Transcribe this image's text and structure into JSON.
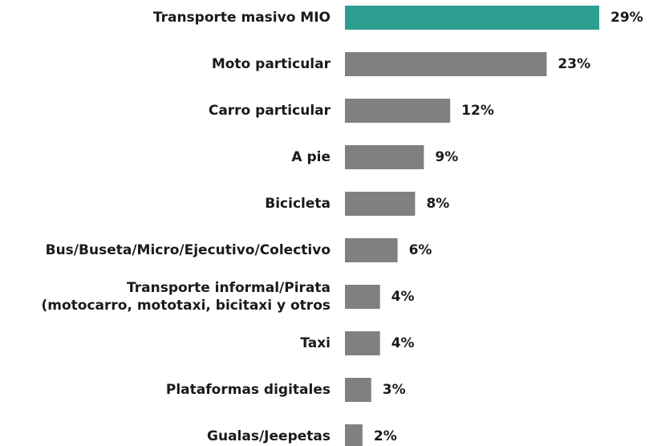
{
  "chart_data": {
    "type": "bar",
    "orientation": "horizontal",
    "categories": [
      "Transporte masivo MIO",
      "Moto particular",
      "Carro particular",
      "A pie",
      "Bicicleta",
      "Bus/Buseta/Micro/Ejecutivo/Colectivo",
      "Transporte informal/Pirata\n(motocarro, mototaxi, bicitaxi y otros",
      "Taxi",
      "Plataformas digitales",
      "Gualas/Jeepetas"
    ],
    "values": [
      29,
      23,
      12,
      9,
      8,
      6,
      4,
      4,
      3,
      2
    ],
    "value_labels": [
      "29%",
      "23%",
      "12%",
      "9%",
      "8%",
      "6%",
      "4%",
      "4%",
      "3%",
      "2%"
    ],
    "colors": [
      "#2e9e90",
      "#808080",
      "#808080",
      "#808080",
      "#808080",
      "#808080",
      "#808080",
      "#808080",
      "#808080",
      "#808080"
    ]
  }
}
